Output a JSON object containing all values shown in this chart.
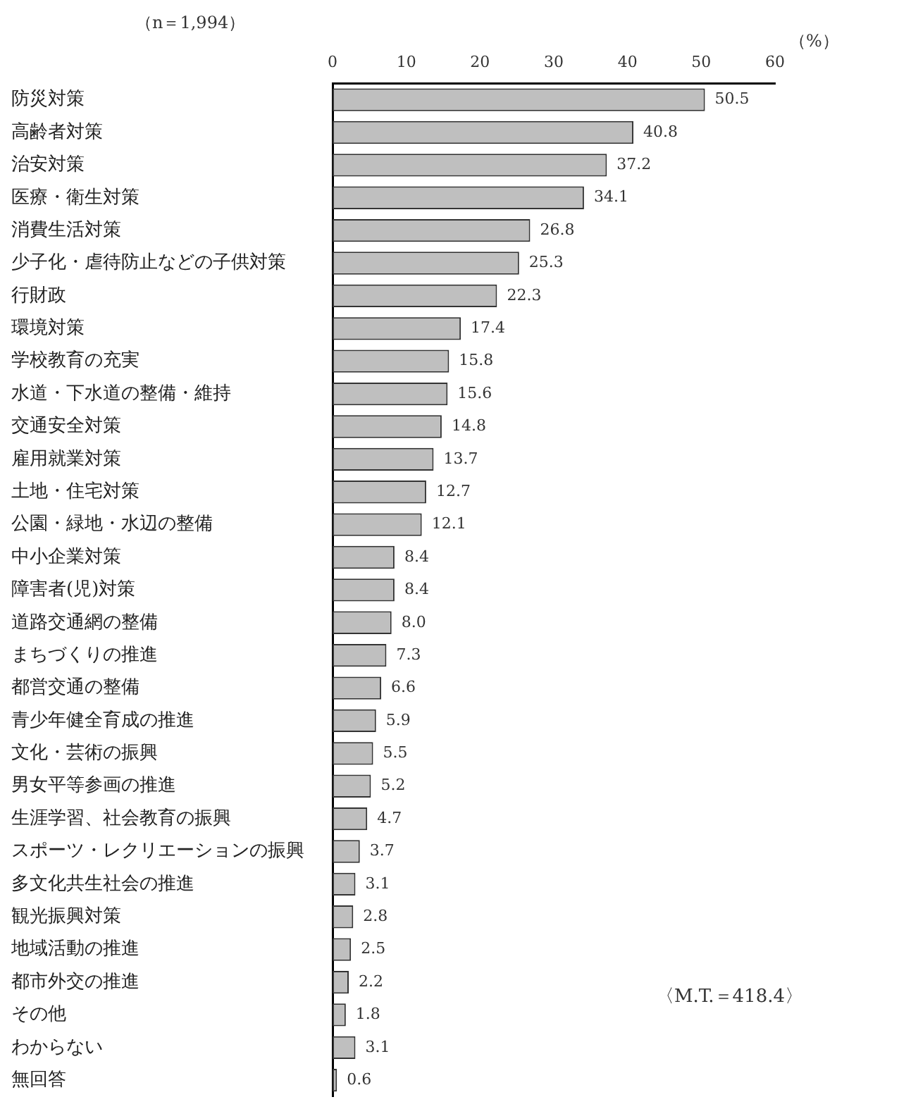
{
  "chart_data": {
    "type": "bar",
    "orientation": "horizontal",
    "subtitle": "（n＝1,994）",
    "xlabel": "（%）",
    "annotations": [
      "〈M.T.＝418.4〉"
    ],
    "categories": [
      "防災対策",
      "高齢者対策",
      "治安対策",
      "医療・衛生対策",
      "消費生活対策",
      "少子化・虐待防止などの子供対策",
      "行財政",
      "環境対策",
      "学校教育の充実",
      "水道・下水道の整備・維持",
      "交通安全対策",
      "雇用就業対策",
      "土地・住宅対策",
      "公園・緑地・水辺の整備",
      "中小企業対策",
      "障害者(児)対策",
      "道路交通網の整備",
      "まちづくりの推進",
      "都営交通の整備",
      "青少年健全育成の推進",
      "文化・芸術の振興",
      "男女平等参画の推進",
      "生涯学習、社会教育の振興",
      "スポーツ・レクリエーションの振興",
      "多文化共生社会の推進",
      "観光振興対策",
      "地域活動の推進",
      "都市外交の推進",
      "その他",
      "わからない",
      "無回答"
    ],
    "values": [
      50.5,
      40.8,
      37.2,
      34.1,
      26.8,
      25.3,
      22.3,
      17.4,
      15.8,
      15.6,
      14.8,
      13.7,
      12.7,
      12.1,
      8.4,
      8.4,
      8.0,
      7.3,
      6.6,
      5.9,
      5.5,
      5.2,
      4.7,
      3.7,
      3.1,
      2.8,
      2.5,
      2.2,
      1.8,
      3.1,
      0.6
    ],
    "value_labels": [
      "50.5",
      "40.8",
      "37.2",
      "34.1",
      "26.8",
      "25.3",
      "22.3",
      "17.4",
      "15.8",
      "15.6",
      "14.8",
      "13.7",
      "12.7",
      "12.1",
      "8.4",
      "8.4",
      "8.0",
      "7.3",
      "6.6",
      "5.9",
      "5.5",
      "5.2",
      "4.7",
      "3.7",
      "3.1",
      "2.8",
      "2.5",
      "2.2",
      "1.8",
      "3.1",
      "0.6"
    ],
    "color": "#bfbfbf",
    "xlim": [
      0,
      60
    ],
    "xticks": [
      0,
      10,
      20,
      30,
      40,
      50,
      60
    ]
  }
}
